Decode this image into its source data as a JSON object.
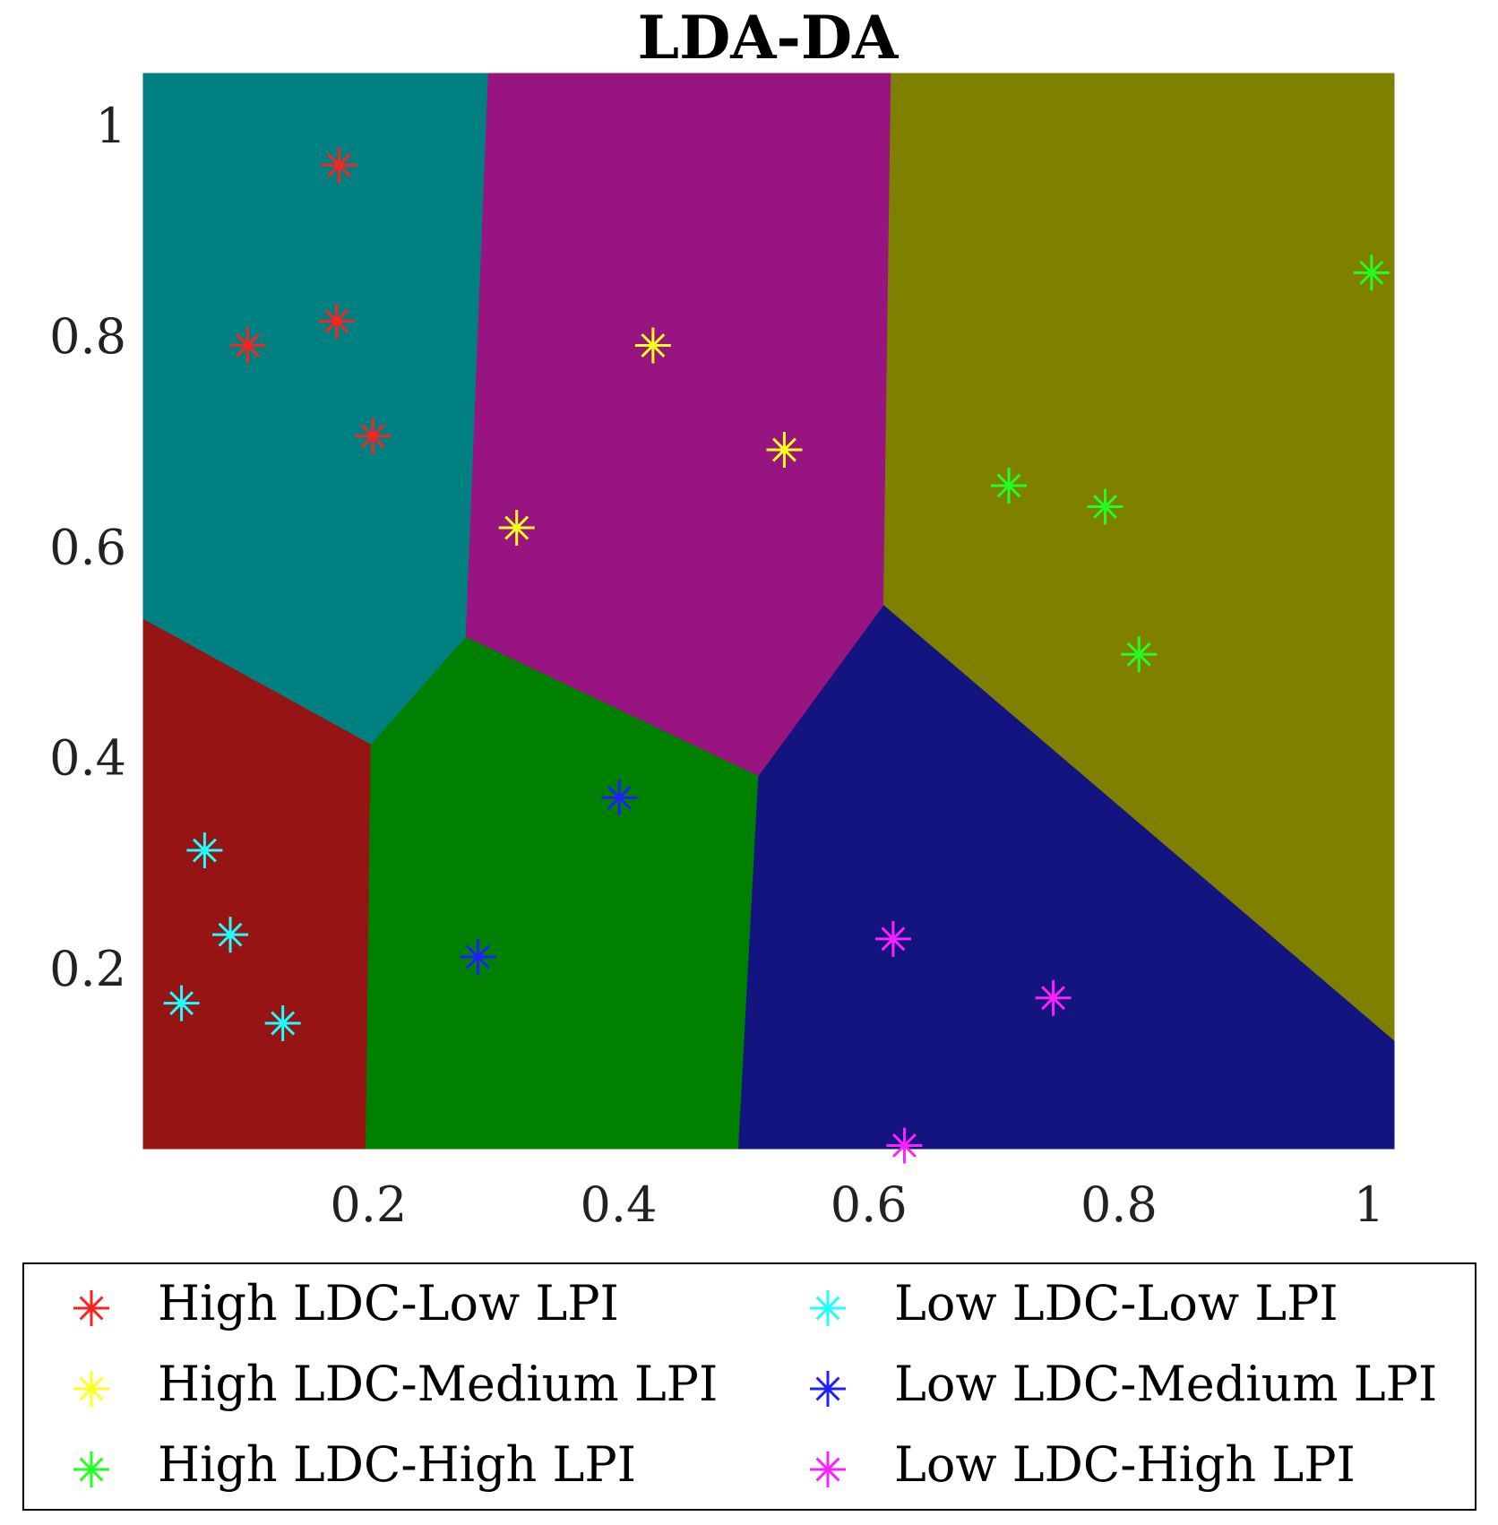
{
  "chart_data": {
    "type": "scatter",
    "title": "LDA-DA",
    "xlabel": "",
    "ylabel": "",
    "xlim": [
      0.02,
      1.02
    ],
    "ylim": [
      0.03,
      1.05
    ],
    "xticks": [
      0.2,
      0.4,
      0.6,
      0.8,
      1
    ],
    "xtick_labels": [
      "0.2",
      "0.4",
      "0.6",
      "0.8",
      "1"
    ],
    "yticks": [
      0.2,
      0.4,
      0.6,
      0.8,
      1
    ],
    "ytick_labels": [
      "0.2",
      "0.4",
      "0.6",
      "0.8",
      "1"
    ],
    "legend_position": "bottom, outside, two columns",
    "regions": [
      {
        "name": "High LDC-Low LPI region",
        "color": "#008080",
        "polygon": [
          [
            0.02,
            1.05
          ],
          [
            0.296,
            1.05
          ],
          [
            0.278,
            0.515
          ],
          [
            0.202,
            0.413
          ],
          [
            0.02,
            0.532
          ]
        ]
      },
      {
        "name": "High LDC-Medium LPI region",
        "color": "#981481",
        "polygon": [
          [
            0.296,
            1.05
          ],
          [
            0.618,
            1.05
          ],
          [
            0.612,
            0.545
          ],
          [
            0.512,
            0.383
          ],
          [
            0.278,
            0.515
          ]
        ]
      },
      {
        "name": "High LDC-High LPI region",
        "color": "#808000",
        "polygon": [
          [
            0.618,
            1.05
          ],
          [
            1.02,
            1.05
          ],
          [
            1.02,
            0.132
          ],
          [
            0.612,
            0.545
          ]
        ]
      },
      {
        "name": "Low LDC-Low LPI region",
        "color": "#961414",
        "polygon": [
          [
            0.02,
            0.532
          ],
          [
            0.202,
            0.413
          ],
          [
            0.198,
            0.03
          ],
          [
            0.02,
            0.03
          ]
        ]
      },
      {
        "name": "Low LDC-Medium LPI region",
        "color": "#008000",
        "polygon": [
          [
            0.202,
            0.413
          ],
          [
            0.278,
            0.515
          ],
          [
            0.512,
            0.383
          ],
          [
            0.496,
            0.03
          ],
          [
            0.198,
            0.03
          ]
        ]
      },
      {
        "name": "Low LDC-High LPI region",
        "color": "#141480",
        "polygon": [
          [
            0.512,
            0.383
          ],
          [
            0.612,
            0.545
          ],
          [
            1.02,
            0.132
          ],
          [
            1.02,
            0.03
          ],
          [
            0.496,
            0.03
          ]
        ]
      }
    ],
    "series": [
      {
        "name": "High LDC-Low LPI",
        "color": "#ff2020",
        "points": [
          [
            0.1765,
            0.963
          ],
          [
            0.1745,
            0.815
          ],
          [
            0.1035,
            0.792
          ],
          [
            0.2035,
            0.706
          ]
        ]
      },
      {
        "name": "High LDC-Medium LPI",
        "color": "#ffff20",
        "points": [
          [
            0.4275,
            0.792
          ],
          [
            0.5325,
            0.693
          ],
          [
            0.3185,
            0.619
          ]
        ]
      },
      {
        "name": "High LDC-High LPI",
        "color": "#20ff20",
        "points": [
          [
            1.002,
            0.861
          ],
          [
            0.712,
            0.659
          ],
          [
            0.789,
            0.639
          ],
          [
            0.816,
            0.499
          ]
        ]
      },
      {
        "name": "Low LDC-Low LPI",
        "color": "#20ffff",
        "points": [
          [
            0.069,
            0.313
          ],
          [
            0.0895,
            0.233
          ],
          [
            0.0505,
            0.168
          ],
          [
            0.1315,
            0.149
          ]
        ]
      },
      {
        "name": "Low LDC-Medium LPI",
        "color": "#2020ff",
        "points": [
          [
            0.4005,
            0.363
          ],
          [
            0.2875,
            0.212
          ]
        ]
      },
      {
        "name": "Low LDC-High LPI",
        "color": "#ff20ff",
        "points": [
          [
            0.6195,
            0.229
          ],
          [
            0.7475,
            0.173
          ],
          [
            0.6285,
            0.033
          ]
        ]
      }
    ]
  }
}
